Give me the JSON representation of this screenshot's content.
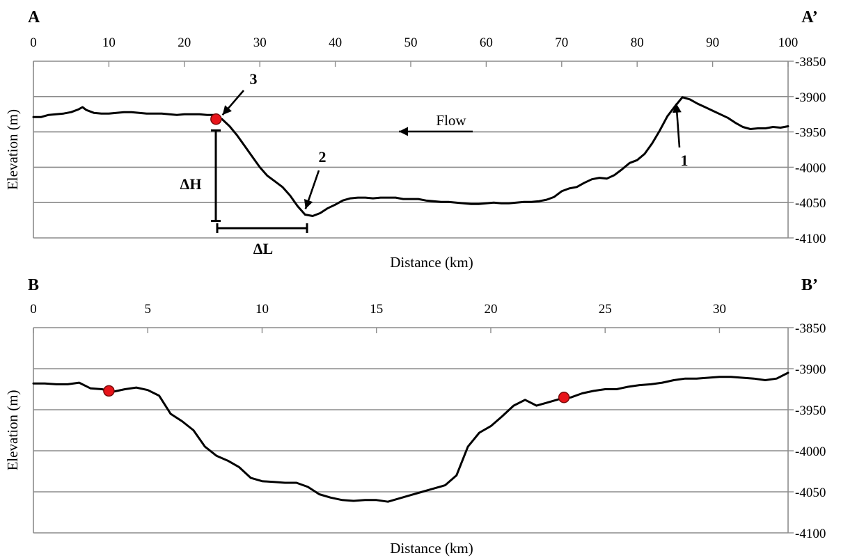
{
  "chart_data": [
    {
      "type": "line",
      "panel": "A",
      "title_left": "A",
      "title_right": "A’",
      "xlabel": "Distance (km)",
      "ylabel": "Elevation (m)",
      "xlim": [
        0,
        100
      ],
      "ylim": [
        -4100,
        -3850
      ],
      "x_ticks": [
        0,
        10,
        20,
        30,
        40,
        50,
        60,
        70,
        80,
        90,
        100
      ],
      "y_ticks": [
        -3850,
        -3900,
        -3950,
        -4000,
        -4050,
        -4100
      ],
      "x_axis_position": "top",
      "y_axis_position": "right",
      "grid": "horizontal",
      "series": [
        {
          "x": [
            0,
            1,
            2,
            3,
            4,
            5,
            6,
            6.5,
            7,
            8,
            9,
            10,
            11,
            12,
            13,
            14,
            15,
            16,
            17,
            18,
            19,
            20,
            21,
            22,
            23,
            24,
            25,
            26,
            27,
            28,
            29,
            30,
            31,
            32,
            33,
            34,
            35,
            36,
            37,
            38,
            39,
            40,
            41,
            42,
            43,
            44,
            45,
            46,
            47,
            48,
            49,
            50,
            51,
            52,
            53,
            54,
            55,
            56,
            57,
            58,
            59,
            60,
            61,
            62,
            63,
            64,
            65,
            66,
            67,
            68,
            69,
            70,
            71,
            72,
            73,
            74,
            75,
            76,
            77,
            78,
            79,
            80,
            81,
            82,
            83,
            84,
            85,
            86,
            87,
            88,
            89,
            90,
            91,
            92,
            93,
            94,
            95,
            96,
            97,
            98,
            99,
            100
          ],
          "y": [
            -3929,
            -3929,
            -3926,
            -3925,
            -3924,
            -3922,
            -3918,
            -3915,
            -3919,
            -3923,
            -3924,
            -3924,
            -3923,
            -3922,
            -3922,
            -3923,
            -3924,
            -3924,
            -3924,
            -3925,
            -3926,
            -3925,
            -3925,
            -3925,
            -3926,
            -3926,
            -3932,
            -3942,
            -3955,
            -3970,
            -3985,
            -4000,
            -4012,
            -4020,
            -4028,
            -4040,
            -4055,
            -4067,
            -4069,
            -4065,
            -4058,
            -4053,
            -4047,
            -4044,
            -4043,
            -4043,
            -4044,
            -4043,
            -4043,
            -4043,
            -4045,
            -4045,
            -4045,
            -4047,
            -4048,
            -4049,
            -4049,
            -4050,
            -4051,
            -4052,
            -4052,
            -4051,
            -4050,
            -4051,
            -4051,
            -4050,
            -4049,
            -4049,
            -4048,
            -4046,
            -4042,
            -4034,
            -4030,
            -4028,
            -4022,
            -4017,
            -4015,
            -4016,
            -4011,
            -4003,
            -3994,
            -3990,
            -3981,
            -3966,
            -3948,
            -3928,
            -3914,
            -3901,
            -3904,
            -3910,
            -3915,
            -3920,
            -3925,
            -3930,
            -3937,
            -3943,
            -3946,
            -3945,
            -3945,
            -3943,
            -3944,
            -3942
          ]
        }
      ],
      "markers": [
        {
          "x": 24.2,
          "y": -3932
        }
      ],
      "annotations": [
        {
          "text": "1",
          "x": 85,
          "y": -3900
        },
        {
          "text": "2",
          "x": 35.5,
          "y": -4065
        },
        {
          "text": "3",
          "x": 24.5,
          "y": -3932
        },
        {
          "text": "Flow",
          "direction": "left"
        },
        {
          "text": "ΔH"
        },
        {
          "text": "ΔL"
        }
      ]
    },
    {
      "type": "line",
      "panel": "B",
      "title_left": "B",
      "title_right": "B’",
      "xlabel": "Distance (km)",
      "ylabel": "Elevation (m)",
      "xlim": [
        0,
        33
      ],
      "ylim": [
        -4100,
        -3850
      ],
      "x_ticks": [
        0,
        5,
        10,
        15,
        20,
        25,
        30
      ],
      "y_ticks": [
        -3850,
        -3900,
        -3950,
        -4000,
        -4050,
        -4100
      ],
      "x_axis_position": "top",
      "y_axis_position": "right",
      "grid": "horizontal",
      "series": [
        {
          "x": [
            0,
            0.5,
            1,
            1.5,
            2,
            2.5,
            3,
            3.5,
            4,
            4.5,
            5,
            5.5,
            6,
            6.5,
            7,
            7.5,
            8,
            8.5,
            9,
            9.5,
            10,
            10.5,
            11,
            11.5,
            12,
            12.5,
            13,
            13.5,
            14,
            14.5,
            15,
            15.5,
            16,
            16.5,
            17,
            17.5,
            18,
            18.5,
            19,
            19.5,
            20,
            20.5,
            21,
            21.5,
            22,
            22.5,
            23,
            23.5,
            24,
            24.5,
            25,
            25.5,
            26,
            26.5,
            27,
            27.5,
            28,
            28.5,
            29,
            29.5,
            30,
            30.5,
            31,
            31.5,
            32,
            32.5,
            33
          ],
          "y": [
            -3918,
            -3918,
            -3919,
            -3919,
            -3917,
            -3924,
            -3925,
            -3928,
            -3925,
            -3923,
            -3926,
            -3933,
            -3955,
            -3964,
            -3975,
            -3995,
            -4006,
            -4012,
            -4020,
            -4033,
            -4037,
            -4038,
            -4039,
            -4039,
            -4044,
            -4053,
            -4057,
            -4060,
            -4061,
            -4060,
            -4060,
            -4062,
            -4058,
            -4054,
            -4050,
            -4046,
            -4042,
            -4030,
            -3995,
            -3978,
            -3970,
            -3958,
            -3945,
            -3938,
            -3945,
            -3941,
            -3937,
            -3935,
            -3930,
            -3927,
            -3925,
            -3925,
            -3922,
            -3920,
            -3919,
            -3917,
            -3914,
            -3912,
            -3912,
            -3911,
            -3910,
            -3910,
            -3911,
            -3912,
            -3914,
            -3912,
            -3905
          ]
        }
      ],
      "markers": [
        {
          "x": 3.3,
          "y": -3927
        },
        {
          "x": 23.2,
          "y": -3935
        }
      ]
    }
  ]
}
